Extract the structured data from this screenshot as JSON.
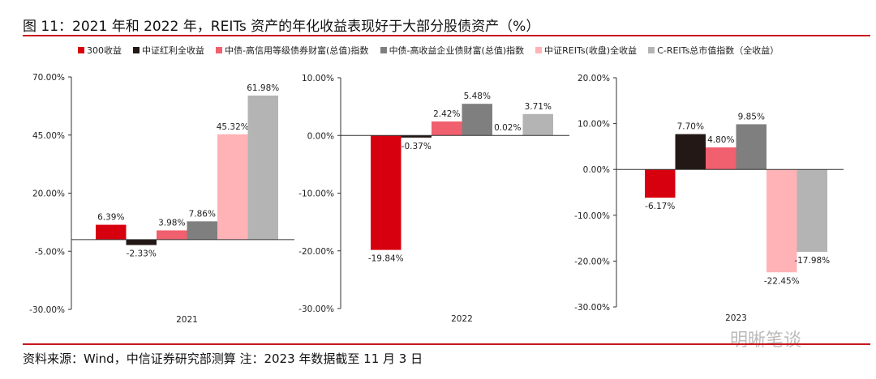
{
  "title": "图 11：2021 年和 2022 年，REITs 资产的年化收益表现好于大部分股债资产（%）",
  "source": "资料来源：Wind，中信证券研究部测算 注：2023 年数据截至 11 月 3 日",
  "watermark": "明晰笔谈",
  "chart_data": [
    {
      "type": "bar",
      "categories": [
        "2021"
      ],
      "ylim": [
        -30,
        70
      ],
      "ticks": [
        "70.00%",
        "45.00%",
        "20.00%",
        "-5.00%",
        "-30.00%"
      ],
      "tick_values": [
        70,
        45,
        20,
        -5,
        -30
      ],
      "series": [
        {
          "name": "300收益",
          "values": [
            6.39
          ]
        },
        {
          "name": "中证红利全收益",
          "values": [
            -2.33
          ]
        },
        {
          "name": "中债-高信用等级债券财富(总值)指数",
          "values": [
            3.98
          ]
        },
        {
          "name": "中债-高收益企业债财富(总值)指数",
          "values": [
            7.86
          ]
        },
        {
          "name": "中证REITs(收盘)全收益",
          "values": [
            45.32
          ]
        },
        {
          "name": "C-REITs总市值指数（全收益）",
          "values": [
            61.98
          ]
        }
      ]
    },
    {
      "type": "bar",
      "categories": [
        "2022"
      ],
      "ylim": [
        -30,
        10
      ],
      "ticks": [
        "10.00%",
        "0.00%",
        "-10.00%",
        "-20.00%",
        "-30.00%"
      ],
      "tick_values": [
        10,
        0,
        -10,
        -20,
        -30
      ],
      "series": [
        {
          "name": "300收益",
          "values": [
            -19.84
          ]
        },
        {
          "name": "中证红利全收益",
          "values": [
            -0.37
          ]
        },
        {
          "name": "中债-高信用等级债券财富(总值)指数",
          "values": [
            2.42
          ]
        },
        {
          "name": "中债-高收益企业债财富(总值)指数",
          "values": [
            5.48
          ]
        },
        {
          "name": "中证REITs(收盘)全收益",
          "values": [
            0.02
          ]
        },
        {
          "name": "C-REITs总市值指数（全收益）",
          "values": [
            3.71
          ]
        }
      ]
    },
    {
      "type": "bar",
      "categories": [
        "2023"
      ],
      "ylim": [
        -30,
        20
      ],
      "ticks": [
        "20.00%",
        "10.00%",
        "0.00%",
        "-10.00%",
        "-20.00%",
        "-30.00%"
      ],
      "tick_values": [
        20,
        10,
        0,
        -10,
        -20,
        -30
      ],
      "series": [
        {
          "name": "300收益",
          "values": [
            -6.17
          ]
        },
        {
          "name": "中证红利全收益",
          "values": [
            7.7
          ]
        },
        {
          "name": "中债-高信用等级债券财富(总值)指数",
          "values": [
            4.8
          ]
        },
        {
          "name": "中债-高收益企业债财富(总值)指数",
          "values": [
            9.85
          ]
        },
        {
          "name": "中证REITs(收盘)全收益",
          "values": [
            -22.45
          ]
        },
        {
          "name": "C-REITs总市值指数（全收益）",
          "values": [
            -17.98
          ]
        }
      ]
    }
  ],
  "legend": [
    "300收益",
    "中证红利全收益",
    "中债-高信用等级债券财富(总值)指数",
    "中债-高收益企业债财富(总值)指数",
    "中证REITs(收盘)全收益",
    "C-REITs总市值指数（全收益）"
  ],
  "colors": [
    "#d7000f",
    "#231815",
    "#f0606e",
    "#7f7f7f",
    "#ffb3b6",
    "#b4b4b4"
  ],
  "legend_placement": "top"
}
